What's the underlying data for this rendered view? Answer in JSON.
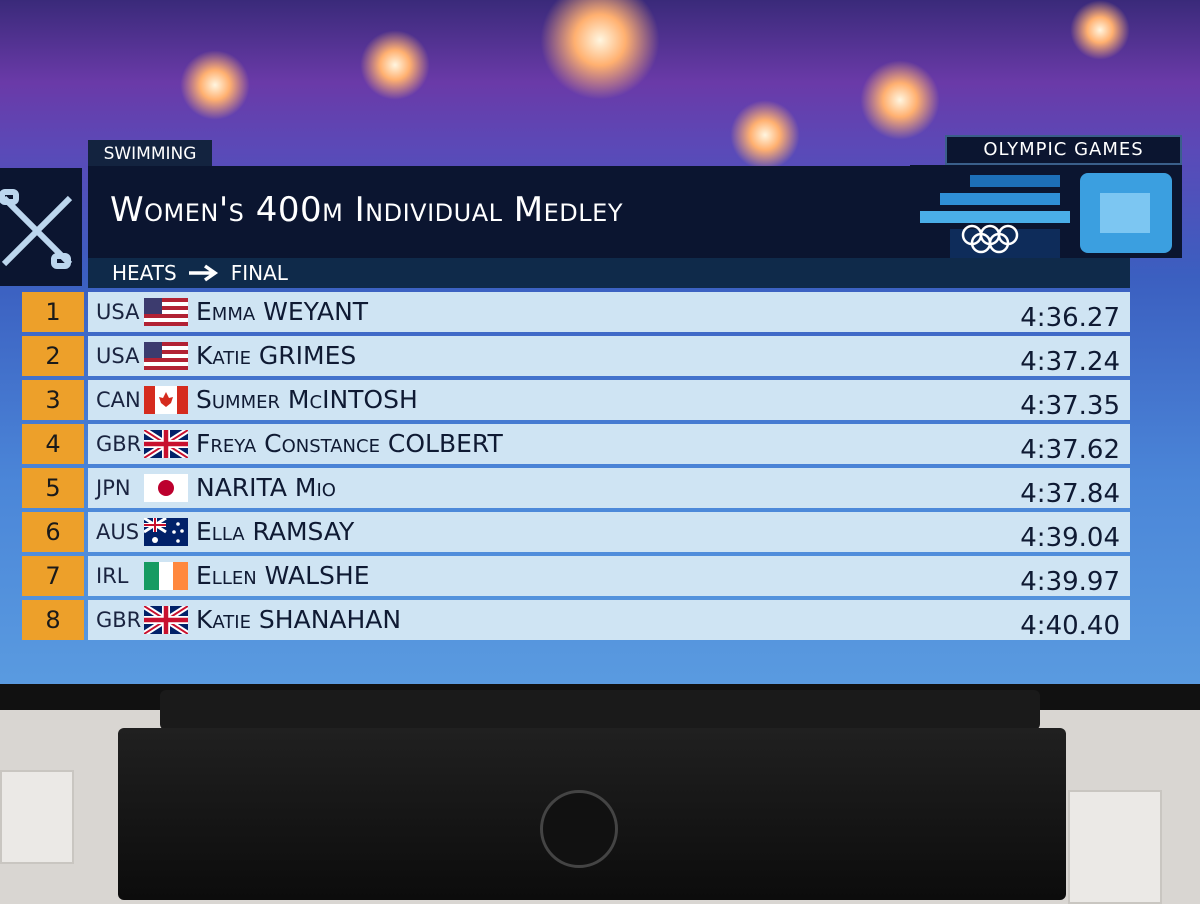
{
  "header": {
    "sport": "SWIMMING",
    "title": "Women's 400m Individual Medley",
    "round_from": "HEATS",
    "round_to": "FINAL",
    "brand": "OLYMPIC GAMES"
  },
  "results": [
    {
      "rank": 1,
      "country": "USA",
      "name": "Emma WEYANT",
      "time": "4:36.27"
    },
    {
      "rank": 2,
      "country": "USA",
      "name": "Katie GRIMES",
      "time": "4:37.24"
    },
    {
      "rank": 3,
      "country": "CAN",
      "name": "Summer McINTOSH",
      "time": "4:37.35"
    },
    {
      "rank": 4,
      "country": "GBR",
      "name": "Freya Constance COLBERT",
      "time": "4:37.62"
    },
    {
      "rank": 5,
      "country": "JPN",
      "name": "NARITA Mio",
      "time": "4:37.84"
    },
    {
      "rank": 6,
      "country": "AUS",
      "name": "Ella RAMSAY",
      "time": "4:39.04"
    },
    {
      "rank": 7,
      "country": "IRL",
      "name": "Ellen WALSHE",
      "time": "4:39.97"
    },
    {
      "rank": 8,
      "country": "GBR",
      "name": "Katie SHANAHAN",
      "time": "4:40.40"
    }
  ]
}
